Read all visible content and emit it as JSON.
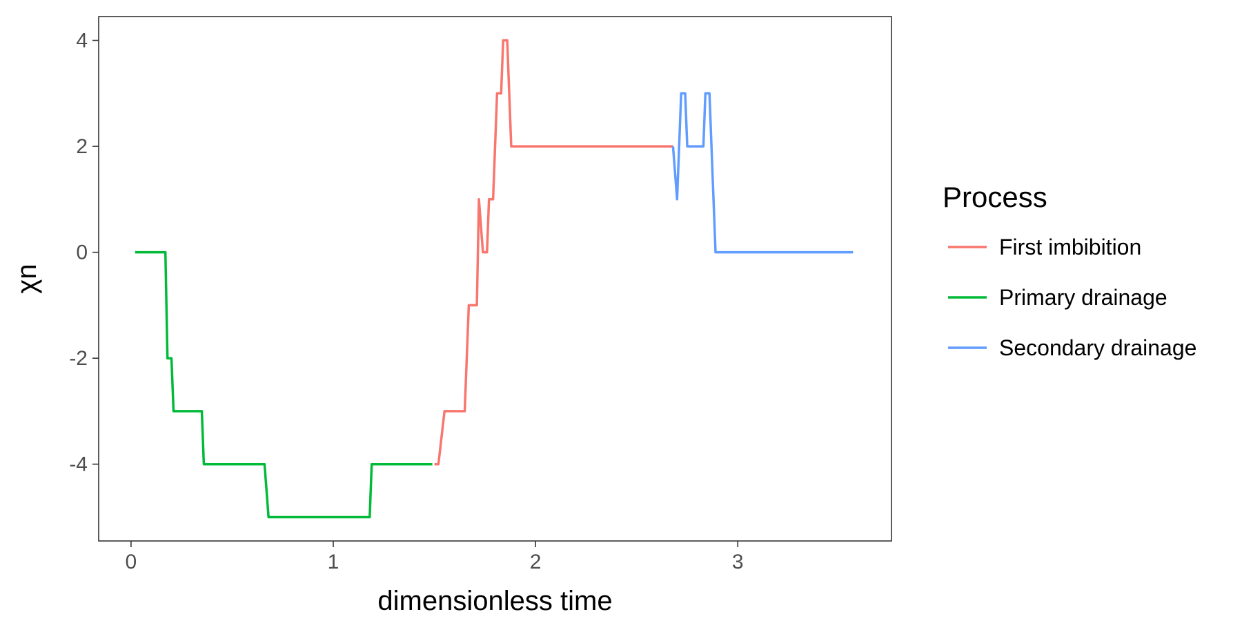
{
  "chart_data": {
    "type": "line",
    "title": "",
    "xlabel": "dimensionless time",
    "ylabel": "χn",
    "xlim": [
      -0.16,
      3.76
    ],
    "ylim": [
      -5.45,
      4.45
    ],
    "x_ticks": [
      0,
      1,
      2,
      3
    ],
    "x_tick_labels": [
      "0",
      "1",
      "2",
      "3"
    ],
    "y_ticks": [
      4,
      2,
      0,
      -2,
      -4
    ],
    "y_tick_labels": [
      "4",
      "2",
      "0",
      "-2",
      "-4"
    ],
    "grid": false,
    "legend": {
      "title": "Process",
      "position": "right"
    },
    "series": [
      {
        "name": "First imbibition",
        "color": "#F8766D",
        "points": [
          [
            1.5,
            -4
          ],
          [
            1.52,
            -4
          ],
          [
            1.55,
            -3
          ],
          [
            1.65,
            -3
          ],
          [
            1.67,
            -1
          ],
          [
            1.71,
            -1
          ],
          [
            1.72,
            1
          ],
          [
            1.74,
            0
          ],
          [
            1.76,
            0
          ],
          [
            1.77,
            1
          ],
          [
            1.79,
            1
          ],
          [
            1.81,
            3
          ],
          [
            1.83,
            3
          ],
          [
            1.84,
            4
          ],
          [
            1.86,
            4
          ],
          [
            1.88,
            2
          ],
          [
            2.68,
            2
          ]
        ]
      },
      {
        "name": "Primary drainage",
        "color": "#00BA38",
        "points": [
          [
            0.02,
            0
          ],
          [
            0.17,
            0
          ],
          [
            0.18,
            -2
          ],
          [
            0.2,
            -2
          ],
          [
            0.21,
            -3
          ],
          [
            0.35,
            -3
          ],
          [
            0.36,
            -4
          ],
          [
            0.66,
            -4
          ],
          [
            0.68,
            -5
          ],
          [
            1.18,
            -5
          ],
          [
            1.19,
            -4
          ],
          [
            1.49,
            -4
          ]
        ]
      },
      {
        "name": "Secondary drainage",
        "color": "#619CFF",
        "points": [
          [
            2.68,
            2
          ],
          [
            2.7,
            1
          ],
          [
            2.72,
            3
          ],
          [
            2.74,
            3
          ],
          [
            2.75,
            2
          ],
          [
            2.83,
            2
          ],
          [
            2.84,
            3
          ],
          [
            2.86,
            3
          ],
          [
            2.89,
            0
          ],
          [
            3.57,
            0
          ]
        ]
      }
    ]
  }
}
